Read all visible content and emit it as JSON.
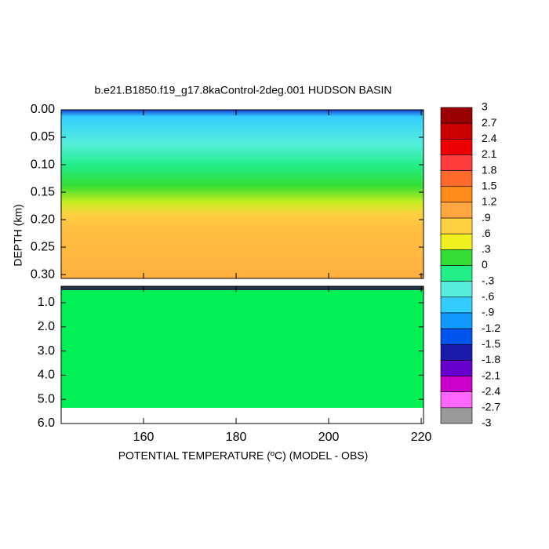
{
  "chart_data": {
    "type": "contour",
    "title": "b.e21.B1850.f19_g17.8kaControl-2deg.001 HUDSON BASIN",
    "xlabel": "POTENTIAL TEMPERATURE (ºC) (MODEL - OBS)",
    "ylabel": "DEPTH (km)",
    "xlim": [
      142.2,
      220.5
    ],
    "xticks": [
      160,
      180,
      200,
      220
    ],
    "panels": [
      {
        "ylim": [
          0,
          0.307
        ],
        "yticks": [
          {
            "value": 0,
            "label": "0.00"
          },
          0.05,
          {
            "value": 0.1,
            "label": "0.10"
          },
          0.15,
          {
            "value": 0.2,
            "label": "0.20"
          },
          0.25,
          {
            "value": 0.3,
            "label": "0.30"
          }
        ]
      },
      {
        "ylim": [
          0.32,
          6.0
        ],
        "yticks": [
          {
            "value": 1,
            "label": "1.0"
          },
          {
            "value": 2,
            "label": "2.0"
          },
          {
            "value": 3,
            "label": "3.0"
          },
          {
            "value": 4,
            "label": "4.0"
          },
          {
            "value": 5,
            "label": "5.0"
          },
          {
            "value": 6,
            "label": "6.0"
          }
        ]
      }
    ],
    "colorbar": {
      "levels": [
        3,
        2.7,
        2.4,
        2.1,
        1.8,
        1.5,
        1.2,
        {
          "value": 0.9,
          "label": ".9"
        },
        {
          "value": 0.6,
          "label": ".6"
        },
        {
          "value": 0.3,
          "label": ".3"
        },
        0,
        {
          "value": -0.3,
          "label": "-.3"
        },
        {
          "value": -0.6,
          "label": "-.6"
        },
        {
          "value": -0.9,
          "label": "-.9"
        },
        -1.2,
        -1.5,
        -1.8,
        -2.1,
        -2.4,
        -2.7,
        -3
      ],
      "colors": [
        "#990000",
        "#cc0000",
        "#ee0000",
        "#ff3b3b",
        "#ff6a2a",
        "#ff8c1a",
        "#ffa640",
        "#ffd040",
        "#f0f020",
        "#33dd33",
        "#22ee88",
        "#55eedd",
        "#33ccff",
        "#1199ff",
        "#0055ee",
        "#1a1aaa",
        "#6600cc",
        "#cc00cc",
        "#ff66ff",
        "#999999"
      ]
    }
  }
}
